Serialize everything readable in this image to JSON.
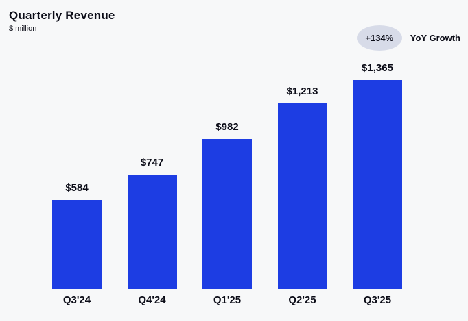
{
  "header": {
    "title": "Quarterly Revenue",
    "subtitle": "$ million",
    "badge_label": "+134%",
    "badge_caption": "YoY Growth"
  },
  "colors": {
    "background": "#f7f8f9",
    "bar": "#1d3de3",
    "badge_bg": "#d7dbe8",
    "text": "#0b0c17"
  },
  "chart_data": {
    "type": "bar",
    "title": "Quarterly Revenue",
    "xlabel": "",
    "ylabel": "$ million",
    "categories": [
      "Q3'24",
      "Q4'24",
      "Q1'25",
      "Q2'25",
      "Q3'25"
    ],
    "values": [
      584,
      747,
      982,
      1213,
      1365
    ],
    "value_labels": [
      "$584",
      "$747",
      "$982",
      "$1,213",
      "$1,365"
    ],
    "ylim": [
      0,
      1365
    ],
    "grid": false,
    "legend": false,
    "annotations": [
      {
        "text": "+134%",
        "meaning": "YoY Growth"
      }
    ],
    "bar_color": "#1d3de3"
  }
}
